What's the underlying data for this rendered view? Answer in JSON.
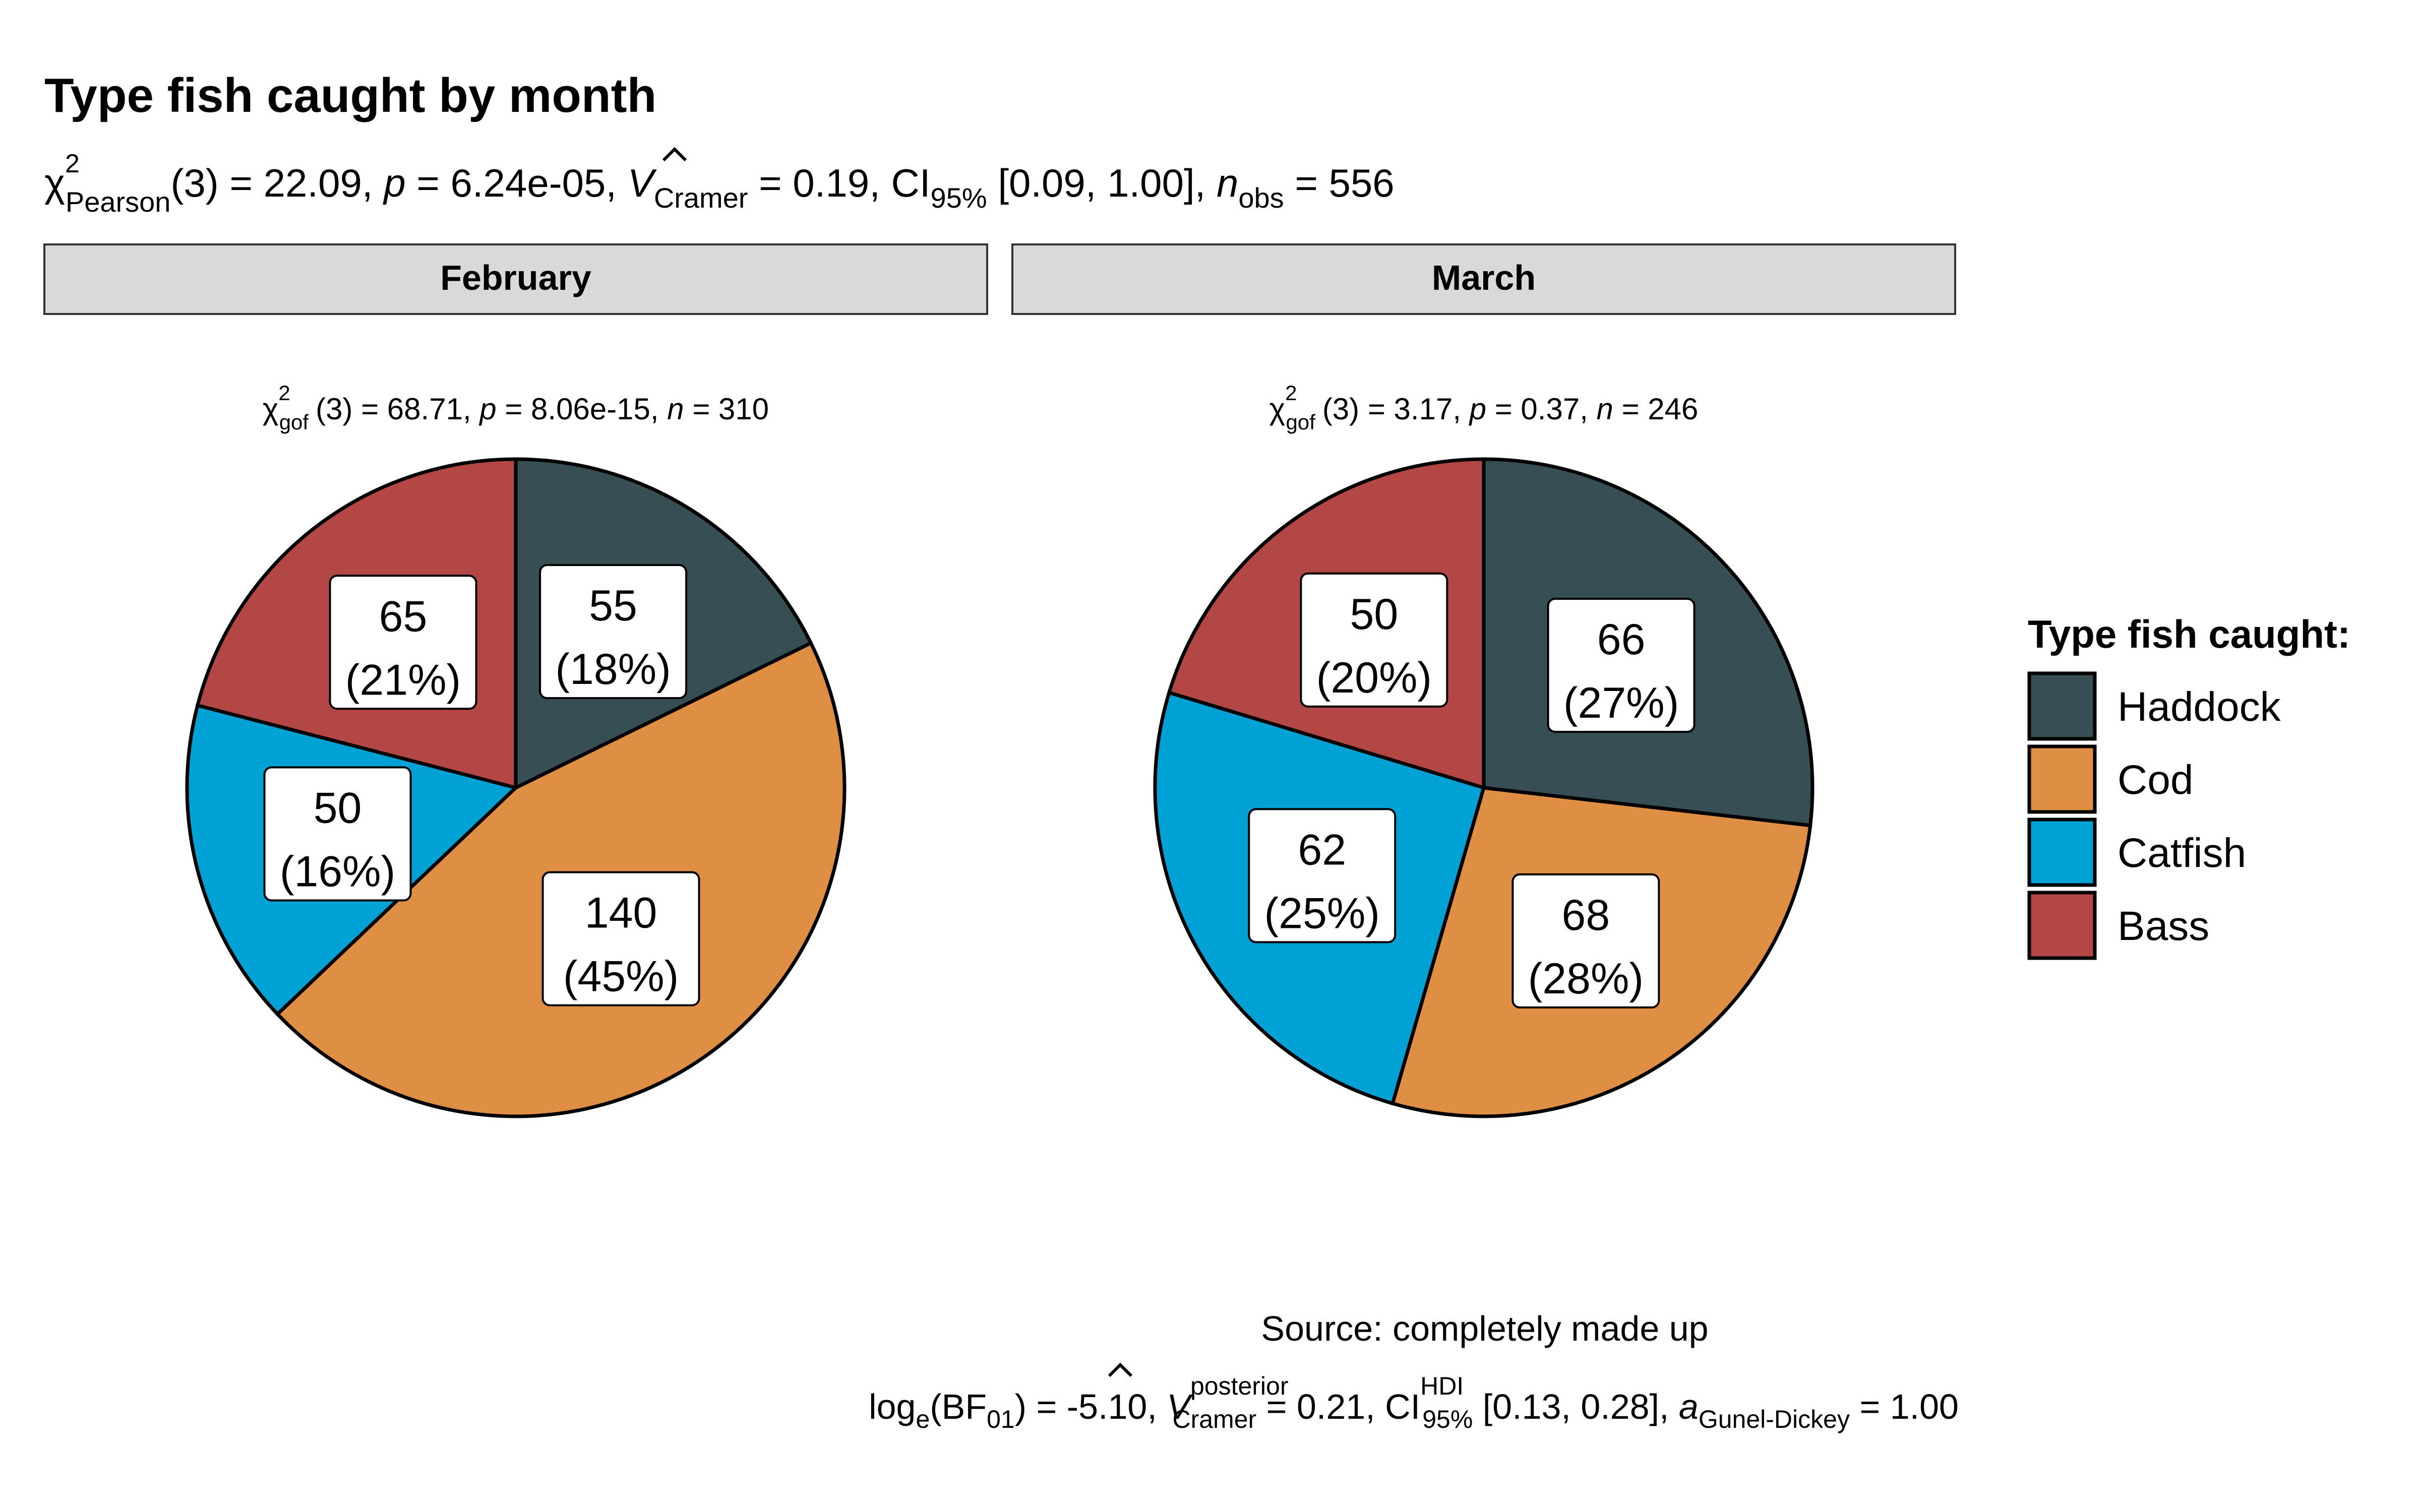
{
  "chart_data": {
    "type": "pie",
    "title": "Type fish caught by month",
    "subtitle": {
      "chi_sym": "χ",
      "sup2": "2",
      "sub_pearson": "Pearson",
      "df": "(3) = 22.09,",
      "p_sym": "p",
      "p_val": "= 6.24e-05,",
      "v_sym": "V",
      "hat": "^",
      "sub_cramer": "Cramer",
      "v_val": "= 0.19, CI",
      "sub_95": "95%",
      "ci_val": "[0.09, 1.00],",
      "n_sym": "n",
      "sub_obs": "obs",
      "n_val": "= 556"
    },
    "legend": {
      "title": "Type fish caught:",
      "position": "right",
      "items": [
        {
          "label": "Haddock",
          "color": "#374E55"
        },
        {
          "label": "Cod",
          "color": "#DF8F44"
        },
        {
          "label": "Catfish",
          "color": "#00A1D5"
        },
        {
          "label": "Bass",
          "color": "#B24745"
        }
      ]
    },
    "facets": [
      {
        "strip": "February",
        "stats": {
          "chi": "χ",
          "sup": "2",
          "sub": "gof",
          "df": "(3) = 68.71,",
          "p": "p",
          "p_val": "= 8.06e-15,",
          "n": "n",
          "n_val": "= 310"
        },
        "slices": [
          {
            "category": "Haddock",
            "value": 55,
            "label_count": "55",
            "label_pct": "(18%)"
          },
          {
            "category": "Cod",
            "value": 140,
            "label_count": "140",
            "label_pct": "(45%)"
          },
          {
            "category": "Catfish",
            "value": 50,
            "label_count": "50",
            "label_pct": "(16%)"
          },
          {
            "category": "Bass",
            "value": 65,
            "label_count": "65",
            "label_pct": "(21%)"
          }
        ]
      },
      {
        "strip": "March",
        "stats": {
          "chi": "χ",
          "sup": "2",
          "sub": "gof",
          "df": "(3) = 3.17,",
          "p": "p",
          "p_val": "= 0.37,",
          "n": "n",
          "n_val": "= 246"
        },
        "slices": [
          {
            "category": "Haddock",
            "value": 66,
            "label_count": "66",
            "label_pct": "(27%)"
          },
          {
            "category": "Cod",
            "value": 68,
            "label_count": "68",
            "label_pct": "(28%)"
          },
          {
            "category": "Catfish",
            "value": 62,
            "label_count": "62",
            "label_pct": "(25%)"
          },
          {
            "category": "Bass",
            "value": 50,
            "label_count": "50",
            "label_pct": "(20%)"
          }
        ]
      }
    ],
    "caption": {
      "source": "Source: completely made up",
      "bf_log": "log",
      "bf_e": "e",
      "bf_open": "(BF",
      "bf_01": "01",
      "bf_close": ") = -5.10,",
      "v_sym": "V",
      "hat": "^",
      "sup_post": "posterior",
      "sub_cramer": "Cramer",
      "v_val": "= 0.21, CI",
      "sup_hdi": "HDI",
      "sub_95": "95%",
      "ci_val": "[0.13, 0.28],",
      "a_sym": "a",
      "sub_gd": "Gunel-Dickey",
      "a_val": "= 1.00"
    }
  }
}
